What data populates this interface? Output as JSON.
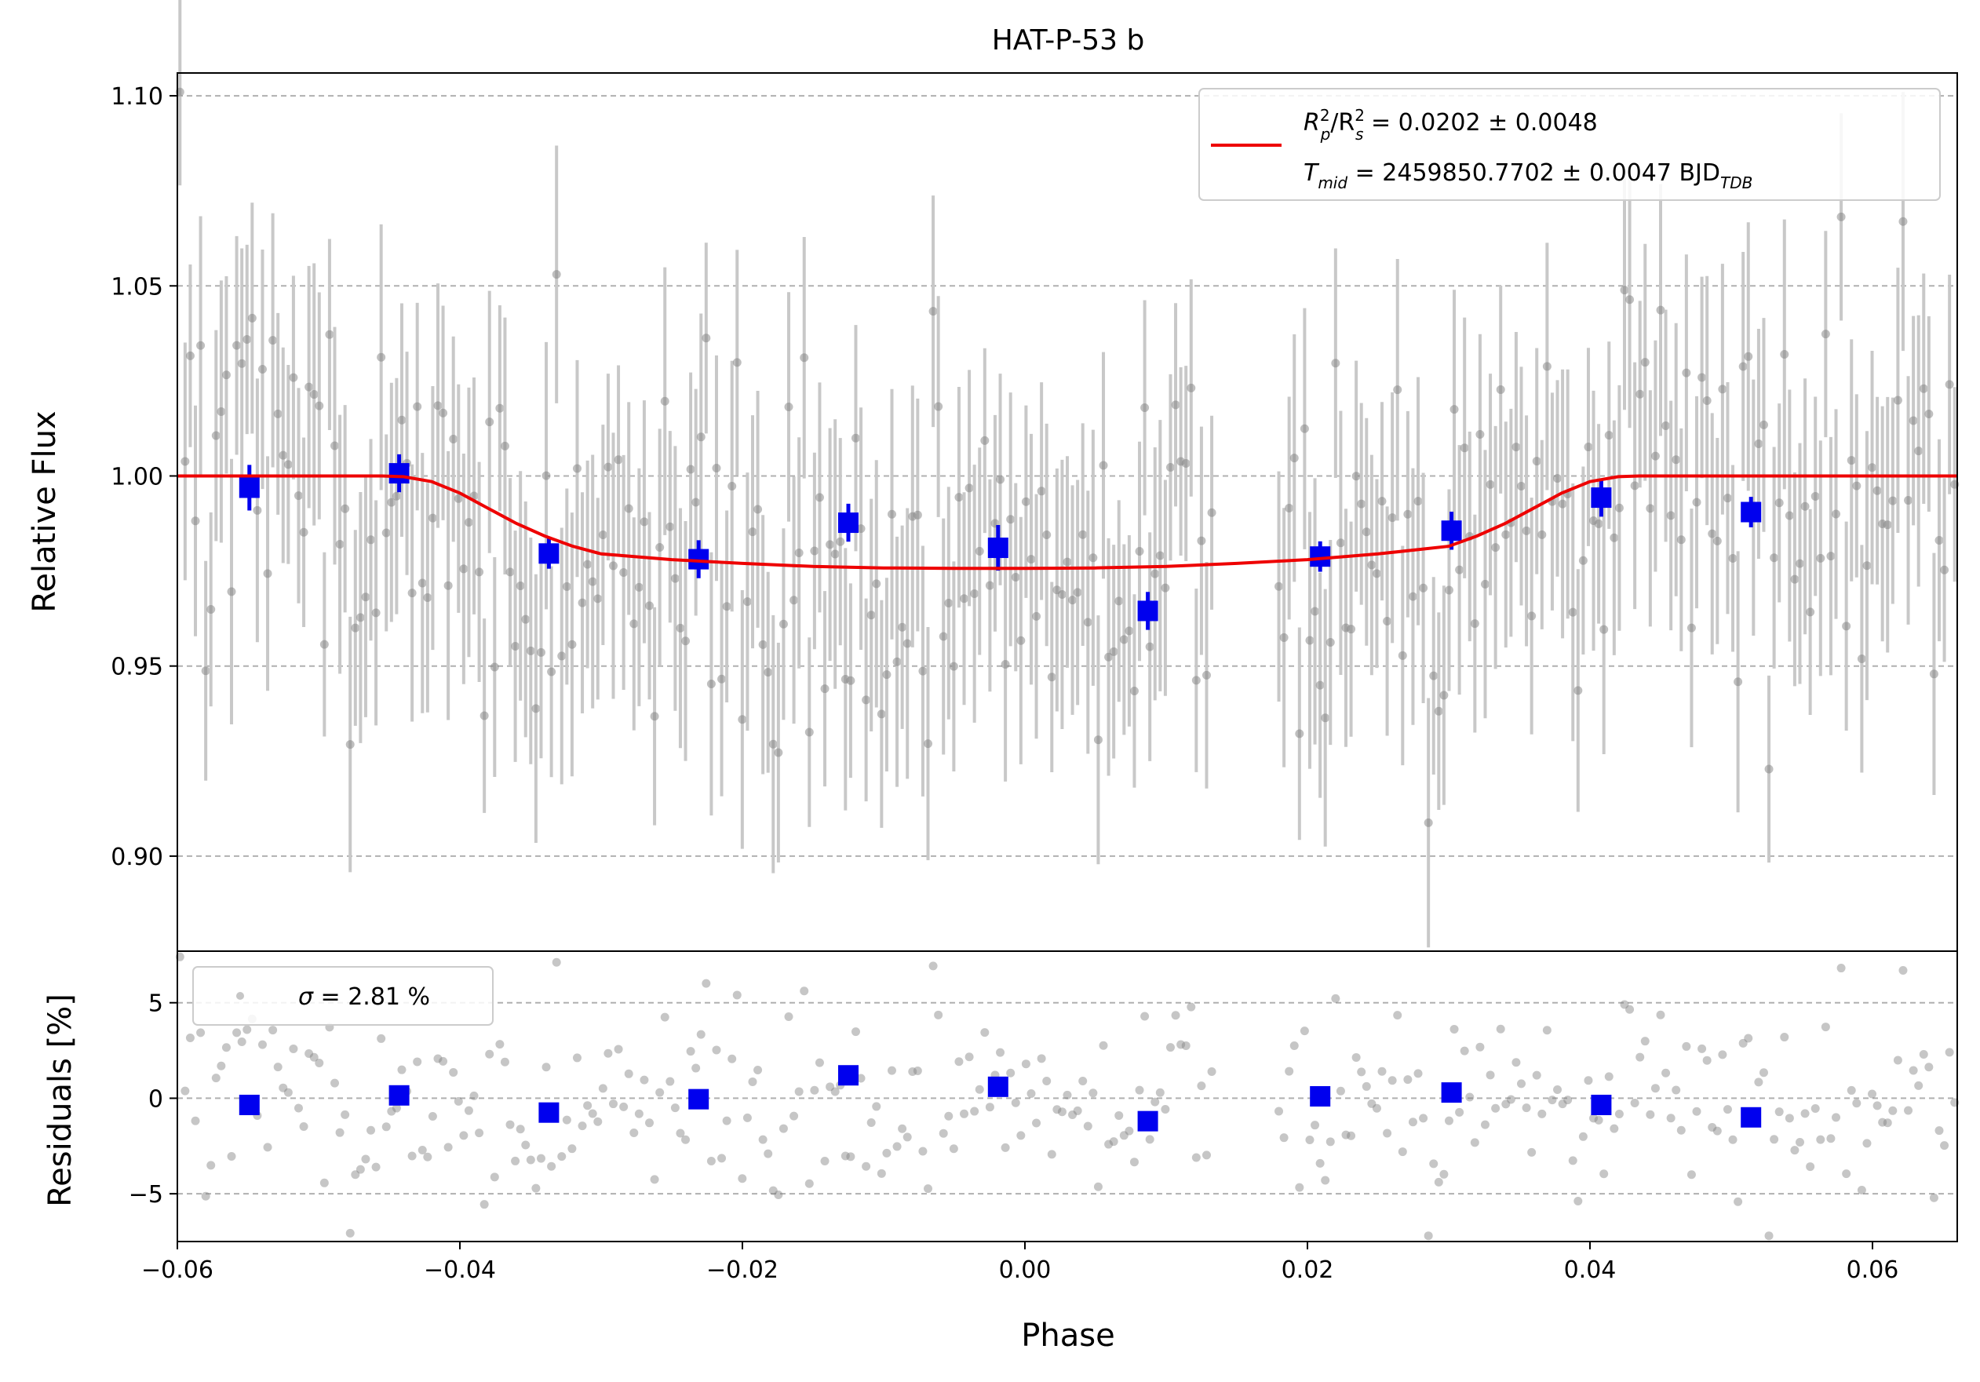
{
  "colors": {
    "raw_points": "#808080",
    "raw_errorbars": "#c8c8c8",
    "binned": "#0000ee",
    "model": "#ee0000",
    "grid": "#b0b0b0",
    "legend_border": "#cccccc"
  },
  "chart_data": [
    {
      "type": "scatter",
      "panel": "light-curve",
      "title": "HAT-P-53 b",
      "xlabel": "",
      "ylabel": "Relative Flux",
      "xlim": [
        -0.06,
        0.066
      ],
      "ylim": [
        0.875,
        1.106
      ],
      "yticks": [
        0.9,
        0.95,
        1.0,
        1.05,
        1.1
      ],
      "ytick_labels": [
        "0.90",
        "0.95",
        "1.00",
        "1.05",
        "1.10"
      ],
      "grid": "horizontal dashed",
      "legend_position": "top-right",
      "legend": {
        "line1_main": "R",
        "line1_sub1": "p",
        "line1_sup1": "2",
        "line1_mid": "/R",
        "line1_sub2": "s",
        "line1_sup2": "2",
        "line1_value": " = 0.0202 ± 0.0048",
        "line2_main": "T",
        "line2_sub": "mid",
        "line2_value": " = 2459850.7702 ± 0.0047 BJD",
        "line2_unit_sub": "TDB"
      },
      "binned": {
        "x": [
          -0.0549,
          -0.0443,
          -0.0337,
          -0.0231,
          -0.0125,
          -0.0019,
          0.0087,
          0.0209,
          0.0302,
          0.0408,
          0.0514
        ],
        "y": [
          0.9969,
          1.0007,
          0.9796,
          0.9781,
          0.9877,
          0.9811,
          0.9645,
          0.9788,
          0.9856,
          0.9943,
          0.9905
        ],
        "yerr": [
          0.006,
          0.005,
          0.004,
          0.005,
          0.005,
          0.006,
          0.005,
          0.004,
          0.005,
          0.005,
          0.004
        ]
      },
      "model": {
        "x": [
          -0.06,
          -0.0455,
          -0.044,
          -0.042,
          -0.04,
          -0.038,
          -0.036,
          -0.034,
          -0.032,
          -0.03,
          -0.025,
          -0.02,
          -0.015,
          -0.01,
          -0.005,
          0.0,
          0.005,
          0.01,
          0.015,
          0.02,
          0.025,
          0.03,
          0.032,
          0.034,
          0.036,
          0.038,
          0.04,
          0.042,
          0.0435,
          0.066
        ],
        "y": [
          1.0,
          1.0,
          0.9998,
          0.9985,
          0.9955,
          0.9915,
          0.9875,
          0.9842,
          0.9815,
          0.9795,
          0.978,
          0.977,
          0.9762,
          0.9758,
          0.9757,
          0.9757,
          0.9758,
          0.9762,
          0.977,
          0.978,
          0.9795,
          0.9815,
          0.9842,
          0.9875,
          0.9915,
          0.9955,
          0.9985,
          0.9998,
          1.0,
          1.0
        ]
      },
      "raw_points_description": "faint grey measurements with error bars scattered around the model"
    },
    {
      "type": "scatter",
      "panel": "residuals",
      "xlabel": "Phase",
      "ylabel": "Residuals [%]",
      "xlim": [
        -0.06,
        0.066
      ],
      "ylim": [
        -7.5,
        7.7
      ],
      "xticks": [
        -0.06,
        -0.04,
        -0.02,
        0.0,
        0.02,
        0.04,
        0.06
      ],
      "xtick_labels": [
        "−0.06",
        "−0.04",
        "−0.02",
        "0.00",
        "0.02",
        "0.04",
        "0.06"
      ],
      "yticks": [
        -5,
        0,
        5
      ],
      "ytick_labels": [
        "−5",
        "0",
        "5"
      ],
      "grid": "horizontal dashed",
      "legend_position": "top-left",
      "legend": {
        "symbol": "σ",
        "text": " = 2.81 %"
      },
      "binned": {
        "x": [
          -0.0549,
          -0.0443,
          -0.0337,
          -0.0231,
          -0.0125,
          -0.0019,
          0.0087,
          0.0209,
          0.0302,
          0.0408,
          0.0514
        ],
        "y": [
          -0.35,
          0.15,
          -0.75,
          -0.05,
          1.2,
          0.6,
          -1.2,
          0.1,
          0.3,
          -0.35,
          -1.0
        ]
      }
    }
  ]
}
